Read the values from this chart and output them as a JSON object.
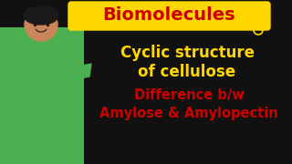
{
  "bg_color": "#111111",
  "title_box_color": "#FFD700",
  "title_text": "Biomolecules",
  "title_text_color": "#CC0000",
  "line1": "Cyclic structure",
  "line2": "of cellulose",
  "line1_color": "#FFD700",
  "line2_color": "#FFD700",
  "line3": "Difference b/w",
  "line4": "Amylose & Amylopectin",
  "line3_color": "#CC0000",
  "line4_color": "#CC0000",
  "circle_color": "#FFD700",
  "person_color": "#4CAF50",
  "skin_color": "#C8865A",
  "hair_color": "#1a1a1a"
}
